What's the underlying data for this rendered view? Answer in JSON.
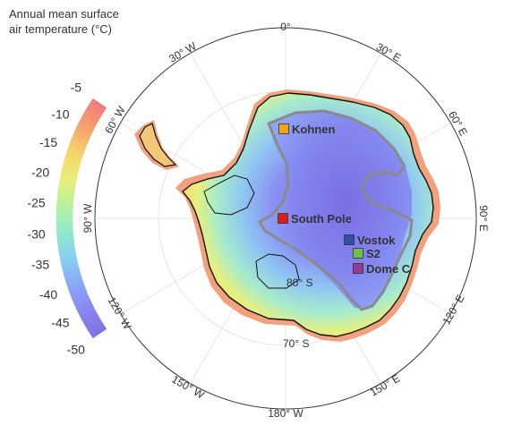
{
  "colorbar": {
    "title_line1": "Annual mean surface",
    "title_line2": "air temperature (°C)",
    "ticks": [
      "-5",
      "-10",
      "-15",
      "-20",
      "-25",
      "-30",
      "-35",
      "-40",
      "-45",
      "-50"
    ],
    "tick_values": [
      -5,
      -10,
      -15,
      -20,
      -25,
      -30,
      -35,
      -40,
      -45,
      -50
    ],
    "range": [
      -50,
      -5
    ],
    "color_stops": [
      "#f07d7d",
      "#f7a26c",
      "#f7d56b",
      "#e6f07a",
      "#b7f0a0",
      "#8fe8cf",
      "#86cdf4",
      "#8aa5f7",
      "#8a84ef",
      "#7c72e2"
    ]
  },
  "map": {
    "longitude_labels": {
      "lon_0": "0°",
      "lon_30e": "30° E",
      "lon_60e": "60° E",
      "lon_90e": "90° E",
      "lon_120e": "120° E",
      "lon_150e": "150° E",
      "lon_180w": "180° W",
      "lon_150w": "150° W",
      "lon_120w": "120° W",
      "lon_90w": "90° W",
      "lon_60w": "60° W",
      "lon_30w": "30° W"
    },
    "latitude_labels": {
      "lat_80s": "80° S",
      "lat_70s": "70° S"
    },
    "sites": [
      {
        "name": "Kohnen",
        "color": "#f2a51a"
      },
      {
        "name": "South Pole",
        "color": "#e01b1b"
      },
      {
        "name": "Vostok",
        "color": "#2f4fa8"
      },
      {
        "name": "S2",
        "color": "#6fc04a"
      },
      {
        "name": "Dome C",
        "color": "#9b3a96"
      }
    ],
    "colors": {
      "frame": "#333333",
      "coastline": "#111111",
      "contour": "#8a8a8a",
      "graticule": "#dddddd"
    }
  }
}
